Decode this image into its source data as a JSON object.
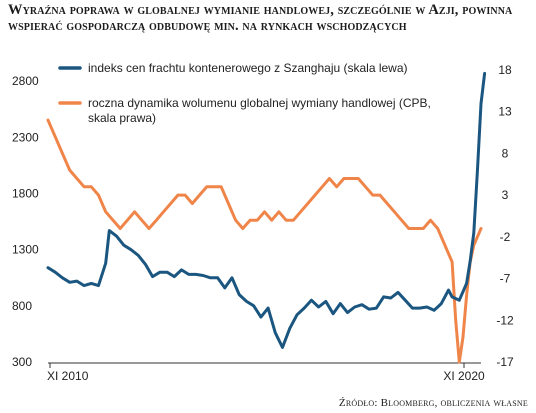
{
  "title": "Wyraźna poprawa w globalnej wymianie handlowej, szczególnie w Azji, powinna wspierać gospodarczą odbudowę min. na rynkach wschodzących",
  "source": "Źródło: Bloomberg, obliczenia własne",
  "colors": {
    "freight": "#1b5680",
    "trade": "#f0854a",
    "grid": "#d8d8d8",
    "text": "#222222"
  },
  "chart_data": {
    "type": "line",
    "title": "Wyraźna poprawa w globalnej wymianie handlowej, szczególnie w Azji, powinna wspierać gospodarczą odbudowę min. na rynkach wschodzących",
    "x_range": [
      "2010-11",
      "2020-11"
    ],
    "x_tick_labels": [
      "XI 2010",
      "XI 2020"
    ],
    "y_left": {
      "range": [
        300,
        2900
      ],
      "ticks": [
        300,
        800,
        1300,
        1800,
        2300,
        2800
      ]
    },
    "y_right": {
      "range": [
        -17,
        18
      ],
      "ticks": [
        -17,
        -12,
        -7,
        -2,
        3,
        8,
        13,
        18
      ]
    },
    "grid": false,
    "legend_position": "top-left",
    "series": [
      {
        "name": "indeks cen frachtu kontenerowego z Szanghaju (skala lewa)",
        "axis": "left",
        "color": "#1b5680",
        "points": [
          [
            "2010-11",
            1140
          ],
          [
            "2011-01",
            1100
          ],
          [
            "2011-03",
            1050
          ],
          [
            "2011-05",
            1010
          ],
          [
            "2011-07",
            1020
          ],
          [
            "2011-09",
            980
          ],
          [
            "2011-11",
            1000
          ],
          [
            "2012-01",
            980
          ],
          [
            "2012-03",
            1180
          ],
          [
            "2012-04",
            1470
          ],
          [
            "2012-06",
            1420
          ],
          [
            "2012-08",
            1340
          ],
          [
            "2012-10",
            1300
          ],
          [
            "2012-12",
            1250
          ],
          [
            "2013-02",
            1170
          ],
          [
            "2013-04",
            1060
          ],
          [
            "2013-06",
            1100
          ],
          [
            "2013-08",
            1100
          ],
          [
            "2013-10",
            1060
          ],
          [
            "2013-12",
            1120
          ],
          [
            "2014-02",
            1080
          ],
          [
            "2014-04",
            1080
          ],
          [
            "2014-06",
            1070
          ],
          [
            "2014-08",
            1050
          ],
          [
            "2014-10",
            1050
          ],
          [
            "2014-12",
            960
          ],
          [
            "2015-02",
            1050
          ],
          [
            "2015-04",
            900
          ],
          [
            "2015-06",
            840
          ],
          [
            "2015-08",
            800
          ],
          [
            "2015-10",
            700
          ],
          [
            "2015-12",
            780
          ],
          [
            "2016-02",
            560
          ],
          [
            "2016-04",
            430
          ],
          [
            "2016-06",
            600
          ],
          [
            "2016-08",
            720
          ],
          [
            "2016-10",
            780
          ],
          [
            "2016-12",
            850
          ],
          [
            "2017-02",
            790
          ],
          [
            "2017-04",
            840
          ],
          [
            "2017-06",
            730
          ],
          [
            "2017-08",
            820
          ],
          [
            "2017-10",
            740
          ],
          [
            "2017-12",
            790
          ],
          [
            "2018-02",
            810
          ],
          [
            "2018-04",
            770
          ],
          [
            "2018-06",
            780
          ],
          [
            "2018-08",
            880
          ],
          [
            "2018-10",
            870
          ],
          [
            "2018-12",
            920
          ],
          [
            "2019-02",
            850
          ],
          [
            "2019-04",
            780
          ],
          [
            "2019-06",
            780
          ],
          [
            "2019-08",
            790
          ],
          [
            "2019-10",
            760
          ],
          [
            "2019-12",
            820
          ],
          [
            "2020-02",
            940
          ],
          [
            "2020-03",
            880
          ],
          [
            "2020-05",
            850
          ],
          [
            "2020-07",
            1000
          ],
          [
            "2020-08",
            1200
          ],
          [
            "2020-09",
            1450
          ],
          [
            "2020-10",
            2000
          ],
          [
            "2020-11",
            2600
          ],
          [
            "2020-12",
            2870
          ]
        ]
      },
      {
        "name": "roczna dynamika wolumenu globalnej wymiany handlowej (CPB, skala prawa)",
        "axis": "right",
        "color": "#f0854a",
        "points": [
          [
            "2010-11",
            12
          ],
          [
            "2011-01",
            10
          ],
          [
            "2011-03",
            8
          ],
          [
            "2011-05",
            6
          ],
          [
            "2011-07",
            5
          ],
          [
            "2011-09",
            4
          ],
          [
            "2011-11",
            4
          ],
          [
            "2012-01",
            3
          ],
          [
            "2012-03",
            1
          ],
          [
            "2012-05",
            0
          ],
          [
            "2012-07",
            -1
          ],
          [
            "2012-09",
            0
          ],
          [
            "2012-11",
            1
          ],
          [
            "2013-01",
            0
          ],
          [
            "2013-03",
            -1
          ],
          [
            "2013-05",
            0
          ],
          [
            "2013-07",
            1
          ],
          [
            "2013-09",
            2
          ],
          [
            "2013-11",
            3
          ],
          [
            "2014-01",
            3
          ],
          [
            "2014-03",
            2
          ],
          [
            "2014-05",
            3
          ],
          [
            "2014-07",
            4
          ],
          [
            "2014-09",
            4
          ],
          [
            "2014-11",
            4
          ],
          [
            "2015-01",
            2
          ],
          [
            "2015-03",
            0
          ],
          [
            "2015-05",
            -1
          ],
          [
            "2015-07",
            0
          ],
          [
            "2015-09",
            0
          ],
          [
            "2015-11",
            1
          ],
          [
            "2016-01",
            0
          ],
          [
            "2016-03",
            1
          ],
          [
            "2016-05",
            0
          ],
          [
            "2016-07",
            0
          ],
          [
            "2016-09",
            1
          ],
          [
            "2016-11",
            2
          ],
          [
            "2017-01",
            3
          ],
          [
            "2017-03",
            4
          ],
          [
            "2017-05",
            5
          ],
          [
            "2017-07",
            4
          ],
          [
            "2017-09",
            5
          ],
          [
            "2017-11",
            5
          ],
          [
            "2018-01",
            5
          ],
          [
            "2018-03",
            4
          ],
          [
            "2018-05",
            3
          ],
          [
            "2018-07",
            3
          ],
          [
            "2018-09",
            2
          ],
          [
            "2018-11",
            1
          ],
          [
            "2019-01",
            0
          ],
          [
            "2019-03",
            -1
          ],
          [
            "2019-05",
            -1
          ],
          [
            "2019-07",
            -1
          ],
          [
            "2019-09",
            0
          ],
          [
            "2019-11",
            -1
          ],
          [
            "2019-12",
            -2
          ],
          [
            "2020-01",
            -3
          ],
          [
            "2020-03",
            -5
          ],
          [
            "2020-04",
            -12
          ],
          [
            "2020-05",
            -17
          ],
          [
            "2020-06",
            -14
          ],
          [
            "2020-07",
            -9
          ],
          [
            "2020-08",
            -5
          ],
          [
            "2020-09",
            -3
          ],
          [
            "2020-10",
            -2
          ],
          [
            "2020-11",
            -1
          ]
        ]
      }
    ]
  }
}
